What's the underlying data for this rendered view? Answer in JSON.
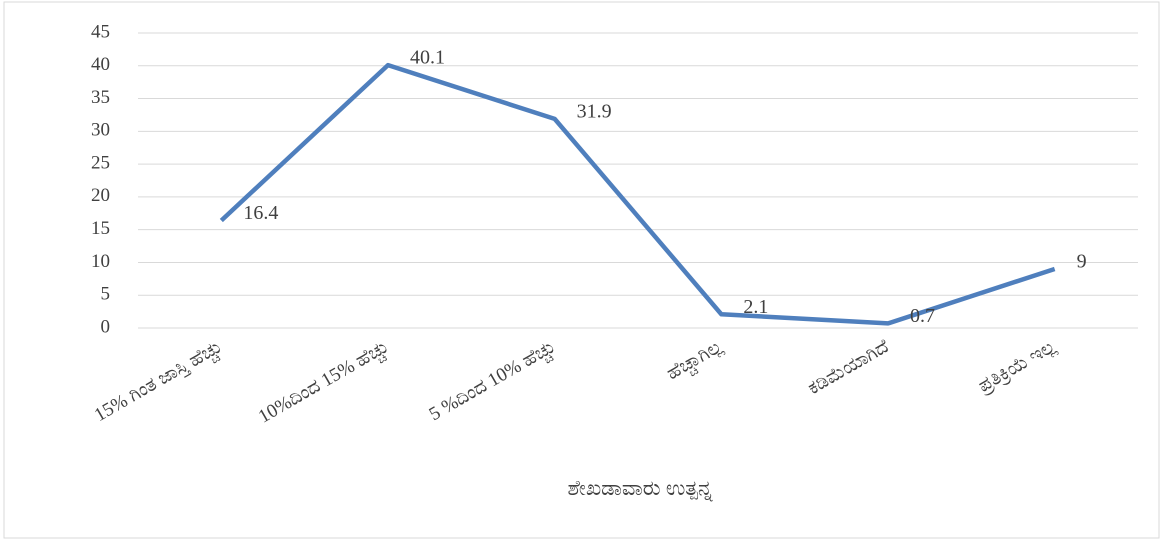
{
  "chart_data": {
    "type": "line",
    "x_label": "ಶೇಖಡಾವಾರು ಉತ್ಪನ್ನ",
    "categories": [
      "15% ಗಿಂತ ಜಾಸ್ತಿ ಹೆಚ್ಚು",
      "10%ದಿಂದ 15% ಹೆಚ್ಚು",
      "5 %ದಿಂದ 10% ಹೆಚ್ಚು",
      "ಹೆಚ್ಚಾಗಿಲ್ಲ",
      "ಕಡಿಮೆಯಾಗಿದೆ",
      "ಪ್ರತಿಕ್ರಿಯೆ ಇಲ್ಲ"
    ],
    "values": [
      16.4,
      40.1,
      31.9,
      2.1,
      0.7,
      9
    ],
    "color": "#4f7fbd",
    "ylim": [
      0,
      45
    ],
    "yticks": [
      0,
      5,
      10,
      15,
      20,
      25,
      30,
      35,
      40,
      45
    ],
    "grid": true
  }
}
